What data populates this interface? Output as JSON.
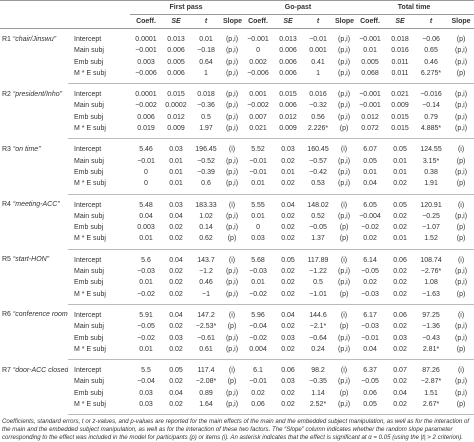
{
  "header": {
    "groups": [
      "First pass",
      "Go-past",
      "Total time"
    ],
    "columns": [
      "Coeff.",
      "SE",
      "t",
      "Slope"
    ]
  },
  "regions": [
    {
      "id": "R1",
      "name": "“chair/Jinswu”",
      "rows": [
        {
          "effect": "Intercept",
          "cells": [
            "0.0001",
            "0.013",
            "0.01",
            "(p,i)",
            "−0.001",
            "0.013",
            "−0.01",
            "(p,i)",
            "−0.001",
            "0.018",
            "−0.06",
            "(p)"
          ]
        },
        {
          "effect": "Main subj",
          "cells": [
            "−0.001",
            "0.006",
            "−0.18",
            "(p,i)",
            "0",
            "0.006",
            "0.001",
            "(p,i)",
            "0.01",
            "0.016",
            "0.65",
            "(p,i)"
          ]
        },
        {
          "effect": "Emb subj",
          "cells": [
            "0.003",
            "0.005",
            "0.64",
            "(p,i)",
            "0.002",
            "0.006",
            "0.41",
            "(p,i)",
            "0.005",
            "0.011",
            "0.46",
            "(p,i)"
          ]
        },
        {
          "effect": "M * E subj",
          "cells": [
            "−0.006",
            "0.006",
            "1",
            "(p,i)",
            "−0.006",
            "0.006",
            "1",
            "(p,i)",
            "0.068",
            "0.011",
            "6.275*",
            "(p)"
          ]
        }
      ]
    },
    {
      "id": "R2",
      "name": "“president/Inho”",
      "rows": [
        {
          "effect": "Intercept",
          "cells": [
            "0.0001",
            "0.015",
            "0.018",
            "(p,i)",
            "0.001",
            "0.015",
            "0.016",
            "(p,i)",
            "−0.001",
            "0.021",
            "−0.016",
            "(p,i)"
          ]
        },
        {
          "effect": "Main subj",
          "cells": [
            "−0.002",
            "0.0002",
            "−0.36",
            "(p,i)",
            "−0.002",
            "0.006",
            "−0.32",
            "(p,i)",
            "−0.001",
            "0.009",
            "−0.14",
            "(p,i)"
          ]
        },
        {
          "effect": "Emb subj",
          "cells": [
            "0.006",
            "0.012",
            "0.5",
            "(p,i)",
            "0.007",
            "0.012",
            "0.56",
            "(p,i)",
            "0.012",
            "0.015",
            "0.79",
            "(p,i)"
          ]
        },
        {
          "effect": "M * E subj",
          "cells": [
            "0.019",
            "0.009",
            "1.97",
            "(p,i)",
            "0.021",
            "0.009",
            "2.226*",
            "(p)",
            "0.072",
            "0.015",
            "4.885*",
            "(p,i)"
          ]
        }
      ]
    },
    {
      "id": "R3",
      "name": "“on time”",
      "rows": [
        {
          "effect": "Intercept",
          "cells": [
            "5.46",
            "0.03",
            "196.45",
            "(i)",
            "5.52",
            "0.03",
            "160.45",
            "(i)",
            "6.07",
            "0.05",
            "124.55",
            "(i)"
          ]
        },
        {
          "effect": "Main subj",
          "cells": [
            "−0.01",
            "0.01",
            "−0.52",
            "(p,i)",
            "−0.01",
            "0.02",
            "−0.57",
            "(p,i)",
            "0.05",
            "0.01",
            "3.15*",
            "(p)"
          ]
        },
        {
          "effect": "Emb subj",
          "cells": [
            "0",
            "0.01",
            "−0.39",
            "(p,i)",
            "−0.01",
            "0.01",
            "−0.42",
            "(p,i)",
            "0.01",
            "0.01",
            "0.38",
            "(p,i)"
          ]
        },
        {
          "effect": "M * E subj",
          "cells": [
            "0",
            "0.01",
            "0.6",
            "(p,i)",
            "0.01",
            "0.02",
            "0.53",
            "(p,i)",
            "0.04",
            "0.02",
            "1.91",
            "(p)"
          ]
        }
      ]
    },
    {
      "id": "R4",
      "name": "“meeting-ACC”",
      "rows": [
        {
          "effect": "Intercept",
          "cells": [
            "5.48",
            "0.03",
            "183.33",
            "(i)",
            "5.55",
            "0.04",
            "148.02",
            "(i)",
            "6.05",
            "0.05",
            "120.91",
            "(i)"
          ]
        },
        {
          "effect": "Main subj",
          "cells": [
            "0.04",
            "0.04",
            "1.02",
            "(p,i)",
            "0.01",
            "0.02",
            "0.52",
            "(p,i)",
            "−0.004",
            "0.02",
            "−0.25",
            "(p,i)"
          ]
        },
        {
          "effect": "Emb subj",
          "cells": [
            "0.003",
            "0.02",
            "0.14",
            "(p,i)",
            "0",
            "0.02",
            "−0.05",
            "(p)",
            "−0.02",
            "0.02",
            "−1.07",
            "(p)"
          ]
        },
        {
          "effect": "M * E subj",
          "cells": [
            "0.01",
            "0.02",
            "0.62",
            "(p)",
            "0.03",
            "0.02",
            "1.37",
            "(p)",
            "0.02",
            "0.01",
            "1.52",
            "(p)"
          ]
        }
      ]
    },
    {
      "id": "R5",
      "name": "“start-HON”",
      "rows": [
        {
          "effect": "Intercept",
          "cells": [
            "5.6",
            "0.04",
            "143.7",
            "(i)",
            "5.68",
            "0.05",
            "117.89",
            "(i)",
            "6.14",
            "0.06",
            "108.74",
            "(i)"
          ]
        },
        {
          "effect": "Main subj",
          "cells": [
            "−0.03",
            "0.02",
            "−1.2",
            "(p,i)",
            "−0.03",
            "0.02",
            "−1.22",
            "(p,i)",
            "−0.05",
            "0.02",
            "−2.76*",
            "(p,i)"
          ]
        },
        {
          "effect": "Emb subj",
          "cells": [
            "0.01",
            "0.02",
            "0.46",
            "(p,i)",
            "0.01",
            "0.02",
            "0.5",
            "(p,i)",
            "0.02",
            "0.02",
            "1.08",
            "(p,i)"
          ]
        },
        {
          "effect": "M * E subj",
          "cells": [
            "−0.02",
            "0.02",
            "−1",
            "(p,i)",
            "−0.02",
            "0.02",
            "−1.01",
            "(p)",
            "−0.03",
            "0.02",
            "−1.63",
            "(p)"
          ]
        }
      ]
    },
    {
      "id": "R6",
      "name": "“conference room”",
      "rows": [
        {
          "effect": "Intercept",
          "cells": [
            "5.91",
            "0.04",
            "147.2",
            "(i)",
            "5.96",
            "0.04",
            "144.6",
            "(i)",
            "6.17",
            "0.06",
            "97.25",
            "(i)"
          ]
        },
        {
          "effect": "Main subj",
          "cells": [
            "−0.05",
            "0.02",
            "−2.53*",
            "(p)",
            "−0.04",
            "0.02",
            "−2.1*",
            "(p)",
            "−0.03",
            "0.02",
            "−1.36",
            "(p,i)"
          ]
        },
        {
          "effect": "Emb subj",
          "cells": [
            "−0.02",
            "0.03",
            "−0.61",
            "(p,i)",
            "−0.02",
            "0.03",
            "−0.64",
            "(p,i)",
            "−0.01",
            "0.03",
            "−0.43",
            "(p,i)"
          ]
        },
        {
          "effect": "M * E subj",
          "cells": [
            "0.01",
            "0.02",
            "0.61",
            "(p,i)",
            "0.004",
            "0.02",
            "0.24",
            "(p,i)",
            "0.04",
            "0.02",
            "2.81*",
            "(p)"
          ]
        }
      ]
    },
    {
      "id": "R7",
      "name": "“door-ACC closed”",
      "rows": [
        {
          "effect": "Intercept",
          "cells": [
            "5.5",
            "0.05",
            "117.4",
            "(i)",
            "6.1",
            "0.06",
            "98.2",
            "(i)",
            "6.37",
            "0.07",
            "87.26",
            "(i)"
          ]
        },
        {
          "effect": "Main subj",
          "cells": [
            "−0.04",
            "0.02",
            "−2.08*",
            "(p)",
            "−0.01",
            "0.03",
            "−0.35",
            "(p,i)",
            "−0.05",
            "0.02",
            "−2.87*",
            "(p,i)"
          ]
        },
        {
          "effect": "Emb subj",
          "cells": [
            "0.03",
            "0.04",
            "0.89",
            "(p,i)",
            "0.02",
            "0.02",
            "1.14",
            "(p)",
            "0.06",
            "0.04",
            "1.51",
            "(p,i)"
          ]
        },
        {
          "effect": "M * E subj",
          "cells": [
            "0.03",
            "0.02",
            "1.64",
            "(p,i)",
            "0.06",
            "0.02",
            "2.52*",
            "(p,i)",
            "0.05",
            "0.02",
            "2.67*",
            "(p)"
          ]
        }
      ]
    }
  ],
  "footnote": "Coefficients, standard errors, t or z-values, and p-values are reported for the main effects of the main and the embedded subject manipulation, as well as for the interaction of the main and the embedded subject manipulation, as well as for the interaction of these two factors. The “Slope” column indicates whether the random slope parameter corresponding to the effect was included in the model for participants (p) or items (i). An asterisk indicates that the effect is significant at α = 0.05 (using the |t| > 2 criterion)."
}
